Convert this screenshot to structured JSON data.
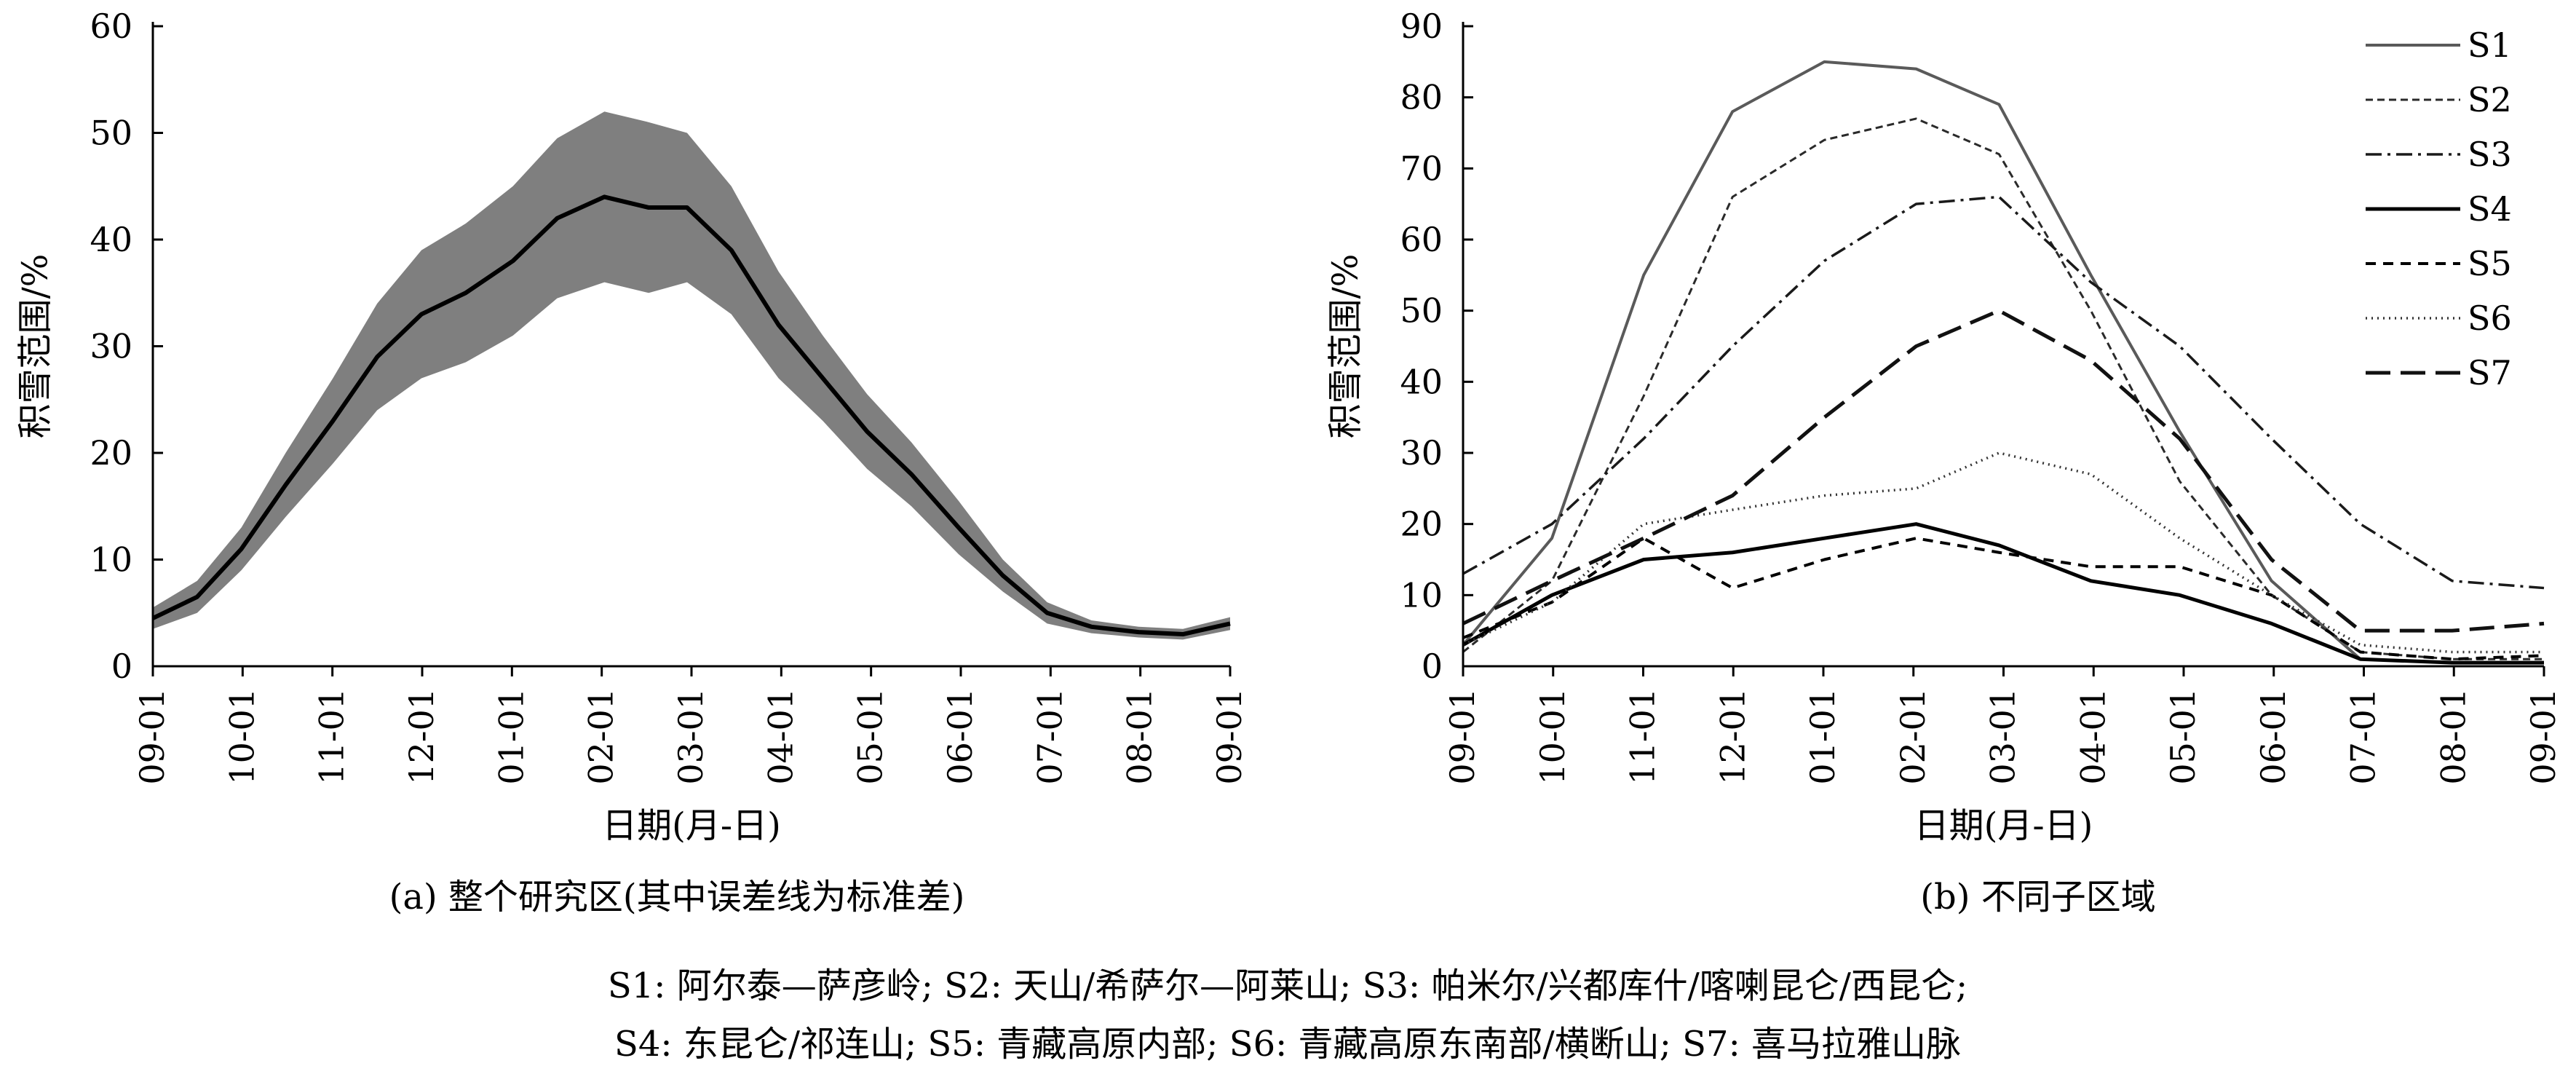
{
  "captions": {
    "a": "(a) 整个研究区(其中误差线为标准差)",
    "b": "(b) 不同子区域"
  },
  "footnote": {
    "line1": "S1: 阿尔泰—萨彦岭;  S2: 天山/希萨尔—阿莱山;  S3: 帕米尔/兴都库什/喀喇昆仑/西昆仑;",
    "line2": "S4: 东昆仑/祁连山;  S5: 青藏高原内部;  S6: 青藏高原东南部/横断山;  S7: 喜马拉雅山脉"
  },
  "chart_data": [
    {
      "id": "a",
      "type": "line",
      "xlabel": "日期(月-日)",
      "ylabel": "积雪范围/%",
      "ylim": [
        0,
        60
      ],
      "yticks": [
        0,
        10,
        20,
        30,
        40,
        50,
        60
      ],
      "x_tick_labels": [
        "09-01",
        "10-01",
        "11-01",
        "12-01",
        "01-01",
        "02-01",
        "03-01",
        "04-01",
        "05-01",
        "06-01",
        "07-01",
        "08-01",
        "09-01"
      ],
      "grid": false,
      "series": [
        {
          "x": [
            "09-01",
            "09-16",
            "10-01",
            "10-16",
            "11-01",
            "11-16",
            "12-01",
            "12-16",
            "01-01",
            "01-16",
            "02-01",
            "02-16",
            "03-01",
            "03-16",
            "04-01",
            "04-16",
            "05-01",
            "05-16",
            "06-01",
            "06-16",
            "07-01",
            "07-16",
            "08-01",
            "08-16",
            "09-01"
          ],
          "values": [
            4.5,
            6.5,
            11,
            17,
            23,
            29,
            33,
            35,
            38,
            42,
            44,
            43,
            43,
            39,
            32,
            27,
            22,
            18,
            13,
            8.5,
            5,
            3.7,
            3.2,
            3.0,
            4.0
          ],
          "std": [
            1.0,
            1.5,
            2.0,
            3.0,
            4.0,
            5.0,
            6.0,
            6.5,
            7.0,
            7.5,
            8.0,
            8.0,
            7.0,
            6.0,
            5.0,
            4.0,
            3.5,
            3.0,
            2.5,
            1.5,
            1.0,
            0.6,
            0.5,
            0.5,
            0.6
          ]
        }
      ]
    },
    {
      "id": "b",
      "type": "line",
      "xlabel": "日期(月-日)",
      "ylabel": "积雪范围/%",
      "ylim": [
        0,
        90
      ],
      "yticks": [
        0,
        10,
        20,
        30,
        40,
        50,
        60,
        70,
        80,
        90
      ],
      "x_tick_labels": [
        "09-01",
        "10-01",
        "11-01",
        "12-01",
        "01-01",
        "02-01",
        "03-01",
        "04-01",
        "05-01",
        "06-01",
        "07-01",
        "08-01",
        "09-01"
      ],
      "grid": false,
      "legend": "top-right",
      "x": [
        "09-01",
        "10-01",
        "11-01",
        "12-01",
        "01-01",
        "02-01",
        "03-01",
        "04-01",
        "05-01",
        "06-01",
        "07-01",
        "08-01",
        "09-01"
      ],
      "series": [
        {
          "name": "S1",
          "values": [
            3,
            18,
            55,
            78,
            85,
            84,
            79,
            55,
            33,
            12,
            1,
            0.5,
            0.5
          ]
        },
        {
          "name": "S2",
          "values": [
            2,
            12,
            38,
            66,
            74,
            77,
            72,
            50,
            26,
            10,
            2,
            1,
            1
          ]
        },
        {
          "name": "S3",
          "values": [
            13,
            20,
            32,
            45,
            57,
            65,
            66,
            54,
            45,
            32,
            20,
            12,
            11
          ]
        },
        {
          "name": "S4",
          "values": [
            3,
            10,
            15,
            16,
            18,
            20,
            17,
            12,
            10,
            6,
            1,
            0.5,
            0.5
          ]
        },
        {
          "name": "S5",
          "values": [
            4,
            9,
            18,
            11,
            15,
            18,
            16,
            14,
            14,
            10,
            2,
            1,
            1.5
          ]
        },
        {
          "name": "S6",
          "values": [
            3,
            9,
            20,
            22,
            24,
            25,
            30,
            27,
            18,
            10,
            3,
            2,
            2
          ]
        },
        {
          "name": "S7",
          "values": [
            6,
            12,
            18,
            24,
            35,
            45,
            50,
            43,
            32,
            15,
            5,
            5,
            6
          ]
        }
      ],
      "series_styles": [
        {
          "stroke": "#5a5a5a",
          "width": 4,
          "dash": ""
        },
        {
          "stroke": "#2a2a2a",
          "width": 3,
          "dash": "10,6"
        },
        {
          "stroke": "#1a1a1a",
          "width": 3.5,
          "dash": "22,8,4,8"
        },
        {
          "stroke": "#000000",
          "width": 5,
          "dash": ""
        },
        {
          "stroke": "#000000",
          "width": 4,
          "dash": "14,10"
        },
        {
          "stroke": "#333333",
          "width": 3.5,
          "dash": "2,6"
        },
        {
          "stroke": "#111111",
          "width": 5,
          "dash": "34,14"
        }
      ]
    }
  ]
}
